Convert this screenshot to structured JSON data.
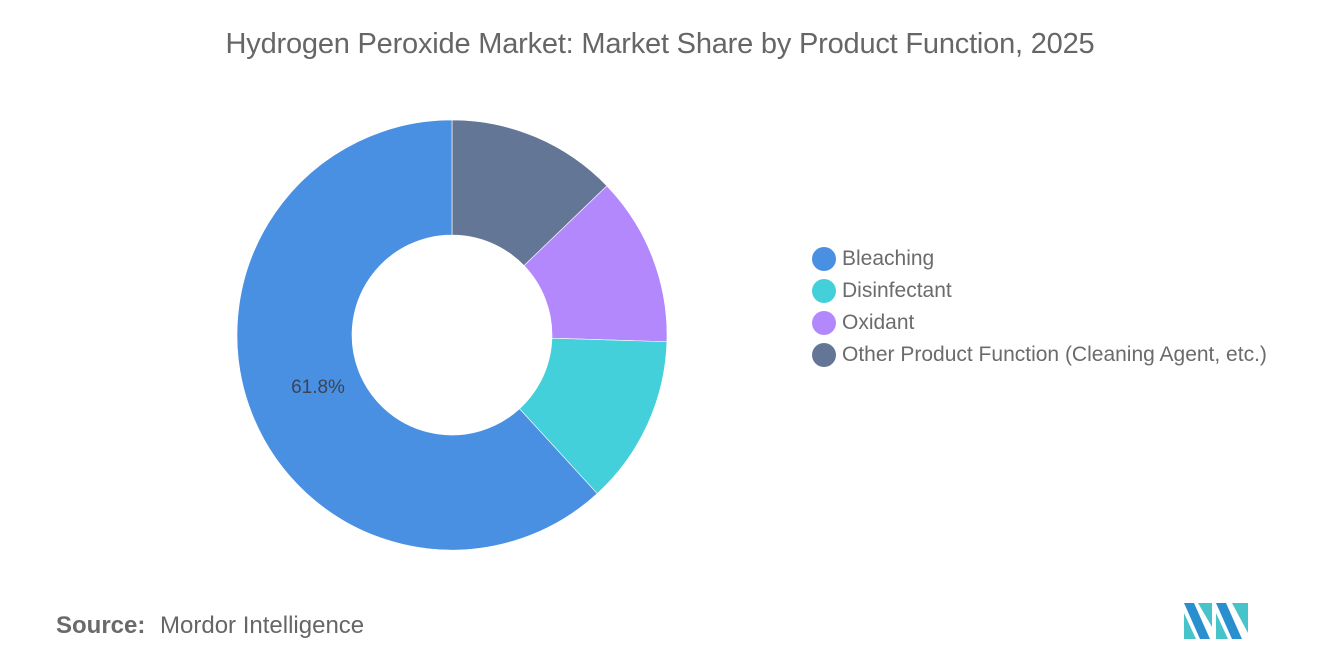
{
  "header": {
    "title": "Hydrogen Peroxide Market: Market Share by Product Function, 2025"
  },
  "legend": {
    "items": [
      {
        "label": "Bleaching",
        "color": "#4a90e2"
      },
      {
        "label": "Disinfectant",
        "color": "#43d0db"
      },
      {
        "label": "Oxidant",
        "color": "#b388fc"
      },
      {
        "label": "Other Product Function (Cleaning Agent, etc.)",
        "color": "#647696"
      }
    ]
  },
  "footer": {
    "source_label": "Source:",
    "source_value": "Mordor Intelligence",
    "logo": "mordor-intelligence-logo"
  },
  "chart_data": {
    "type": "pie",
    "variant": "donut",
    "title": "Hydrogen Peroxide Market: Market Share by Product Function, 2025",
    "categories": [
      "Bleaching",
      "Disinfectant",
      "Oxidant",
      "Other Product Function (Cleaning Agent, etc.)"
    ],
    "values": [
      61.8,
      12.7,
      12.7,
      12.8
    ],
    "unit": "%",
    "colors": [
      "#4a90e2",
      "#43d0db",
      "#b388fc",
      "#647696"
    ],
    "data_labels": [
      {
        "category": "Bleaching",
        "text": "61.8%"
      }
    ],
    "legend_position": "right",
    "start_angle": 0,
    "direction": "counterclockwise-from-top-for-first-category"
  }
}
